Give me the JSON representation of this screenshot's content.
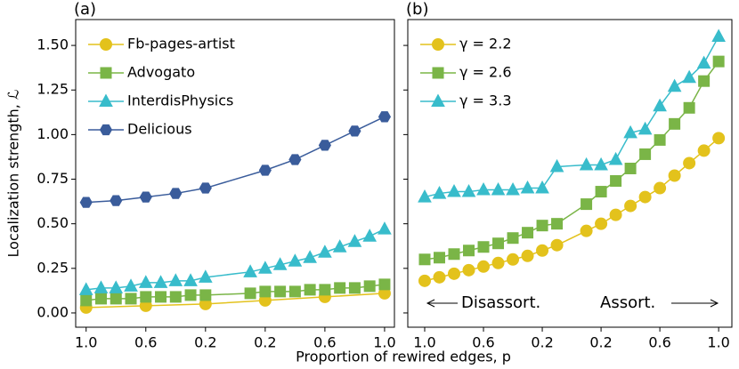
{
  "ylabel": "Localization strength, ℒ",
  "xlabel": "Proportion of rewired edges, p",
  "chart_data": [
    {
      "type": "line",
      "title": "(a)",
      "xlim": [
        -1.07,
        1.066
      ],
      "ylim": [
        -0.08,
        1.645
      ],
      "xticks": [
        {
          "value": -1,
          "label": "1.0"
        },
        {
          "value": -0.6,
          "label": "0.6"
        },
        {
          "value": -0.2,
          "label": "0.2"
        },
        {
          "value": 0.2,
          "label": "0.2"
        },
        {
          "value": 0.6,
          "label": "0.6"
        },
        {
          "value": 1,
          "label": "1.0"
        }
      ],
      "yticks": [
        {
          "value": 0,
          "label": "0.00"
        },
        0.25,
        {
          "value": 0.5,
          "label": "0.50"
        },
        0.75,
        {
          "value": 1,
          "label": "1.00"
        },
        1.25,
        {
          "value": 1.5,
          "label": "1.50"
        }
      ],
      "legend": "upper left",
      "series": [
        {
          "name": "Fb-pages-artist",
          "color": "#e3c21c",
          "marker": "circle",
          "x": [
            -1,
            -0.6,
            -0.2,
            0.2,
            0.6,
            1
          ],
          "values": [
            0.03,
            0.04,
            0.05,
            0.07,
            0.09,
            0.11
          ]
        },
        {
          "name": "Advogato",
          "color": "#7ab547",
          "marker": "square",
          "x": [
            -1,
            -0.9,
            -0.8,
            -0.7,
            -0.6,
            -0.5,
            -0.4,
            -0.3,
            -0.2,
            0.1,
            0.2,
            0.3,
            0.4,
            0.5,
            0.6,
            0.7,
            0.8,
            0.9,
            1
          ],
          "values": [
            0.07,
            0.08,
            0.08,
            0.08,
            0.09,
            0.09,
            0.09,
            0.1,
            0.1,
            0.11,
            0.12,
            0.12,
            0.12,
            0.13,
            0.13,
            0.14,
            0.14,
            0.15,
            0.16
          ]
        },
        {
          "name": "InterdisPhysics",
          "color": "#38bccb",
          "marker": "triangle",
          "x": [
            -1,
            -0.9,
            -0.8,
            -0.7,
            -0.6,
            -0.5,
            -0.4,
            -0.3,
            -0.2,
            0.1,
            0.2,
            0.3,
            0.4,
            0.5,
            0.6,
            0.7,
            0.8,
            0.9,
            1
          ],
          "values": [
            0.13,
            0.14,
            0.14,
            0.15,
            0.17,
            0.17,
            0.18,
            0.18,
            0.2,
            0.23,
            0.25,
            0.27,
            0.29,
            0.31,
            0.34,
            0.37,
            0.4,
            0.43,
            0.47
          ]
        },
        {
          "name": "Delicious",
          "color": "#3a5c9b",
          "marker": "hexagon",
          "x": [
            -1,
            -0.8,
            -0.6,
            -0.4,
            -0.2,
            0.2,
            0.4,
            0.6,
            0.8,
            1
          ],
          "values": [
            0.62,
            0.63,
            0.65,
            0.67,
            0.7,
            0.8,
            0.86,
            0.94,
            1.02,
            1.1
          ]
        }
      ]
    },
    {
      "type": "line",
      "title": "(b)",
      "xlim": [
        -1.115,
        1.09
      ],
      "ylim": [
        -0.08,
        1.645
      ],
      "xticks": [
        {
          "value": -1,
          "label": "1.0"
        },
        {
          "value": -0.6,
          "label": "0.6"
        },
        {
          "value": -0.2,
          "label": "0.2"
        },
        {
          "value": 0.2,
          "label": "0.2"
        },
        {
          "value": 0.6,
          "label": "0.6"
        },
        {
          "value": 1,
          "label": "1.0"
        }
      ],
      "yticks": [
        0,
        0.25,
        0.5,
        0.75,
        1,
        1.25,
        1.5
      ],
      "ytick_labels": false,
      "legend": "upper left",
      "annotations": [
        "Disassort.",
        "Assort."
      ],
      "series": [
        {
          "name": "γ = 2.2",
          "color": "#e3c21c",
          "marker": "circle",
          "x": [
            -1,
            -0.9,
            -0.8,
            -0.7,
            -0.6,
            -0.5,
            -0.4,
            -0.3,
            -0.2,
            -0.1,
            0.1,
            0.2,
            0.3,
            0.4,
            0.5,
            0.6,
            0.7,
            0.8,
            0.9,
            1
          ],
          "values": [
            0.18,
            0.2,
            0.22,
            0.24,
            0.26,
            0.28,
            0.3,
            0.32,
            0.35,
            0.38,
            0.46,
            0.5,
            0.55,
            0.6,
            0.65,
            0.7,
            0.77,
            0.84,
            0.91,
            0.98
          ]
        },
        {
          "name": "γ = 2.6",
          "color": "#7ab547",
          "marker": "square",
          "x": [
            -1,
            -0.9,
            -0.8,
            -0.7,
            -0.6,
            -0.5,
            -0.4,
            -0.3,
            -0.2,
            -0.1,
            0.1,
            0.2,
            0.3,
            0.4,
            0.5,
            0.6,
            0.7,
            0.8,
            0.9,
            1
          ],
          "values": [
            0.3,
            0.31,
            0.33,
            0.35,
            0.37,
            0.39,
            0.42,
            0.45,
            0.49,
            0.5,
            0.61,
            0.68,
            0.74,
            0.81,
            0.89,
            0.97,
            1.06,
            1.15,
            1.3,
            1.41
          ]
        },
        {
          "name": "γ = 3.3",
          "color": "#38bccb",
          "marker": "triangle",
          "x": [
            -1,
            -0.9,
            -0.8,
            -0.7,
            -0.6,
            -0.5,
            -0.4,
            -0.3,
            -0.2,
            -0.1,
            0.1,
            0.2,
            0.3,
            0.4,
            0.5,
            0.6,
            0.7,
            0.8,
            0.9,
            1
          ],
          "values": [
            0.65,
            0.67,
            0.68,
            0.68,
            0.69,
            0.69,
            0.69,
            0.7,
            0.7,
            0.82,
            0.83,
            0.83,
            0.86,
            1.01,
            1.03,
            1.16,
            1.27,
            1.32,
            1.4,
            1.55
          ]
        }
      ]
    }
  ]
}
